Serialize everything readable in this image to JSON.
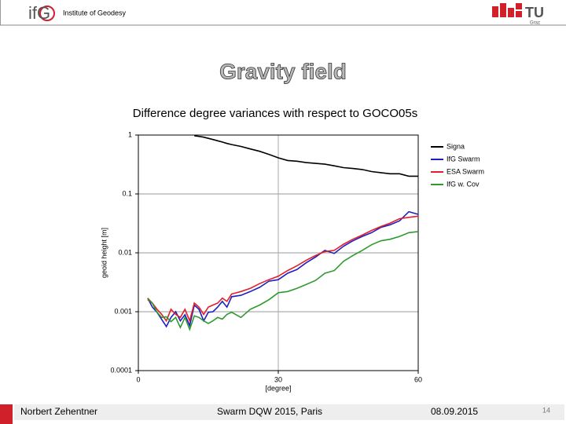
{
  "header": {
    "logo_left": "ifG",
    "institute": "Institute of Geodesy",
    "logo_right": "TU",
    "logo_right_sub": "Graz"
  },
  "title": "Gravity field",
  "subtitle": "Difference degree variances with respect to GOCO05s",
  "chart_data": {
    "type": "line",
    "xlabel": "[degree]",
    "ylabel": "geoid height [m]",
    "x": [
      2,
      3,
      4,
      5,
      6,
      7,
      8,
      9,
      10,
      11,
      12,
      13,
      14,
      15,
      16,
      17,
      18,
      19,
      20,
      22,
      24,
      26,
      28,
      30,
      32,
      34,
      36,
      38,
      40,
      42,
      44,
      46,
      48,
      50,
      52,
      54,
      56,
      58,
      60
    ],
    "series": [
      {
        "name": "Signa",
        "color": "#000000",
        "values": [
          null,
          null,
          null,
          null,
          null,
          null,
          null,
          null,
          null,
          null,
          0.97,
          0.95,
          0.92,
          0.88,
          0.84,
          0.8,
          0.76,
          0.72,
          0.69,
          0.64,
          0.58,
          0.53,
          0.47,
          0.41,
          0.37,
          0.36,
          0.34,
          0.33,
          0.32,
          0.3,
          0.28,
          0.27,
          0.26,
          0.24,
          0.23,
          0.22,
          0.22,
          0.2,
          0.2
        ]
      },
      {
        "name": "IfG Swarm",
        "color": "#1f1fbf",
        "values": [
          0.0017,
          0.0012,
          0.00098,
          0.00074,
          0.00056,
          0.0008,
          0.001,
          0.0007,
          0.00089,
          0.00058,
          0.0013,
          0.0011,
          0.0007,
          0.00098,
          0.001,
          0.0012,
          0.0015,
          0.0012,
          0.0018,
          0.0019,
          0.0022,
          0.0026,
          0.0033,
          0.0035,
          0.0045,
          0.0052,
          0.0068,
          0.0085,
          0.011,
          0.0098,
          0.013,
          0.016,
          0.019,
          0.022,
          0.027,
          0.03,
          0.035,
          0.05,
          0.045
        ]
      },
      {
        "name": "ESA Swarm",
        "color": "#e0202a",
        "values": [
          0.0016,
          0.0014,
          0.0011,
          0.0009,
          0.0007,
          0.0011,
          0.0009,
          0.0008,
          0.0011,
          0.0007,
          0.0014,
          0.0012,
          0.0009,
          0.0012,
          0.0013,
          0.0014,
          0.0017,
          0.0015,
          0.002,
          0.0022,
          0.0025,
          0.003,
          0.0035,
          0.004,
          0.005,
          0.006,
          0.0075,
          0.009,
          0.0105,
          0.011,
          0.014,
          0.017,
          0.02,
          0.024,
          0.028,
          0.032,
          0.038,
          0.04,
          0.042
        ]
      },
      {
        "name": "IfG w. Cov",
        "color": "#2e9a2e",
        "values": [
          0.0017,
          0.0014,
          0.00098,
          0.0008,
          0.00082,
          0.00068,
          0.0008,
          0.00054,
          0.0008,
          0.0005,
          0.00085,
          0.0008,
          0.0007,
          0.00063,
          0.0007,
          0.0008,
          0.00075,
          0.0009,
          0.00098,
          0.0008,
          0.0011,
          0.0013,
          0.0016,
          0.0021,
          0.0022,
          0.0025,
          0.0029,
          0.0034,
          0.0045,
          0.005,
          0.0072,
          0.009,
          0.011,
          0.0137,
          0.016,
          0.017,
          0.019,
          0.022,
          0.023
        ]
      }
    ],
    "xlim": [
      0,
      60
    ],
    "xticks": [
      0,
      30,
      60
    ],
    "ylim": [
      0.0001,
      1
    ],
    "yticks": [
      1,
      0.1,
      0.01,
      0.001,
      0.0001
    ],
    "ylog": true,
    "grid": true,
    "legend": "top-right"
  },
  "footer": {
    "author": "Norbert Zehentner",
    "event": "Swarm DQW 2015, Paris",
    "date": "08.09.2015",
    "page": "14"
  }
}
